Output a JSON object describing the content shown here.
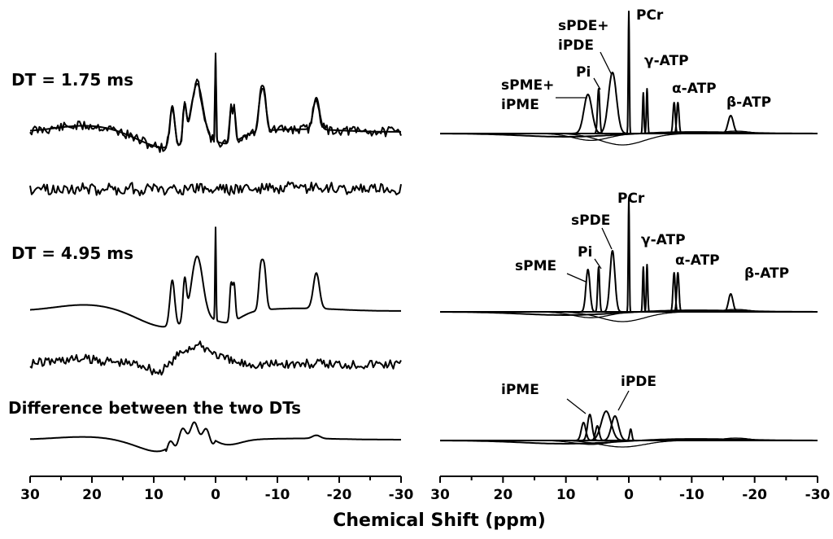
{
  "chart_data": [
    {
      "type": "line",
      "panel": "left",
      "xlabel": "Chemical Shift (ppm)",
      "xlim": [
        30,
        -30
      ],
      "x_ticks": [
        "30",
        "20",
        "10",
        "0",
        "-10",
        "-20",
        "-30"
      ],
      "traces": [
        {
          "label": "DT = 1.75 ms",
          "kind": "spectrum with fit",
          "peaks_ppm": [
            7.0,
            5.0,
            3.0,
            0.0,
            -2.7,
            -7.5,
            -16.3
          ]
        },
        {
          "label": "",
          "kind": "residual"
        },
        {
          "label": "DT = 4.95 ms",
          "kind": "fit",
          "peaks_ppm": [
            7.0,
            5.0,
            3.0,
            0.0,
            -2.7,
            -7.5,
            -16.3
          ]
        },
        {
          "label": "",
          "kind": "residual"
        },
        {
          "label": "Difference between the two DTs",
          "kind": "difference"
        }
      ]
    },
    {
      "type": "line",
      "panel": "right",
      "xlim": [
        30,
        -30
      ],
      "x_ticks": [
        "30",
        "20",
        "10",
        "0",
        "-10",
        "-20",
        "-30"
      ],
      "traces": [
        {
          "label": "DT = 1.75 ms",
          "annotations": [
            "sPDE+",
            "iPDE",
            "PCr",
            "Pi",
            "γ-ATP",
            "sPME+",
            "iPME",
            "α-ATP",
            "β-ATP"
          ]
        },
        {
          "label": "DT = 4.95 ms",
          "annotations": [
            "PCr",
            "sPDE",
            "γ-ATP",
            "Pi",
            "α-ATP",
            "sPME",
            "β-ATP"
          ]
        },
        {
          "label": "Difference",
          "annotations": [
            "iPME",
            "iPDE"
          ]
        }
      ]
    }
  ],
  "labels": {
    "dt1": "DT = 1.75 ms",
    "dt2": "DT = 4.95 ms",
    "diff": "Difference between the two DTs",
    "xaxis": "Chemical Shift (ppm)",
    "r1_spde": "sPDE+",
    "r1_ipde": "iPDE",
    "r1_pcr": "PCr",
    "r1_pi": "Pi",
    "r1_gatp": "γ-ATP",
    "r1_spme": "sPME+",
    "r1_ipme": "iPME",
    "r1_aatp": "α-ATP",
    "r1_batp": "β-ATP",
    "r2_pcr": "PCr",
    "r2_spde": "sPDE",
    "r2_gatp": "γ-ATP",
    "r2_pi": "Pi",
    "r2_aatp": "α-ATP",
    "r2_spme": "sPME",
    "r2_batp": "β-ATP",
    "r3_ipme": "iPME",
    "r3_ipde": "iPDE"
  },
  "ticks": [
    "30",
    "20",
    "10",
    "0",
    "-10",
    "-20",
    "-30"
  ]
}
